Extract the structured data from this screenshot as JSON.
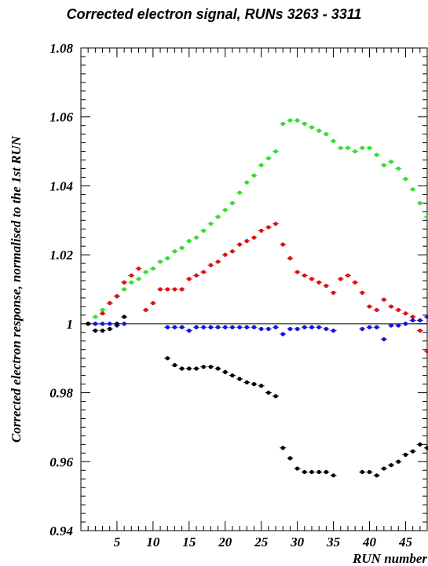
{
  "chart_data": {
    "type": "scatter",
    "title": "Corrected electron signal,  RUNs 3263 - 3311",
    "xlabel": "RUN number",
    "ylabel": "Corrected electron response, normalised to the 1st RUN",
    "xlim": [
      0,
      48
    ],
    "ylim": [
      0.94,
      1.08
    ],
    "grid": false,
    "x_ticks": [
      "5",
      "10",
      "15",
      "20",
      "25",
      "30",
      "35",
      "40",
      "45"
    ],
    "y_ticks": [
      "0.94",
      "0.96",
      "0.98",
      "1",
      "1.02",
      "1.04",
      "1.06",
      "1.08"
    ],
    "colors": {
      "green": "#33dd33",
      "red": "#dd1111",
      "blue": "#1111dd",
      "black": "#000000"
    },
    "series": [
      {
        "color_key": "green",
        "x": [
          1,
          2,
          3,
          4,
          5,
          6,
          7,
          8,
          9,
          10,
          11,
          12,
          13,
          14,
          15,
          16,
          17,
          18,
          19,
          20,
          21,
          22,
          23,
          24,
          25,
          26,
          27,
          28,
          29,
          30,
          31,
          32,
          33,
          34,
          35,
          36,
          37,
          38,
          39,
          40,
          41,
          42,
          43,
          44,
          45,
          46,
          47,
          48
        ],
        "y": [
          1.0,
          1.002,
          1.004,
          1.006,
          1.008,
          1.01,
          1.012,
          1.013,
          1.015,
          1.016,
          1.018,
          1.019,
          1.021,
          1.022,
          1.024,
          1.025,
          1.027,
          1.029,
          1.031,
          1.033,
          1.035,
          1.038,
          1.041,
          1.043,
          1.046,
          1.048,
          1.05,
          1.058,
          1.059,
          1.059,
          1.058,
          1.057,
          1.056,
          1.055,
          1.053,
          1.051,
          1.051,
          1.05,
          1.051,
          1.051,
          1.049,
          1.046,
          1.047,
          1.045,
          1.042,
          1.039,
          1.035,
          1.031
        ]
      },
      {
        "color_key": "red",
        "x": [
          1,
          2,
          3,
          4,
          5,
          6,
          7,
          8,
          9,
          10,
          11,
          12,
          13,
          14,
          15,
          16,
          17,
          18,
          19,
          20,
          21,
          22,
          23,
          24,
          25,
          26,
          27,
          28,
          29,
          30,
          31,
          32,
          33,
          34,
          35,
          36,
          37,
          38,
          39,
          40,
          41,
          42,
          43,
          44,
          45,
          46,
          47,
          48
        ],
        "y": [
          1.0,
          1.0,
          1.003,
          1.006,
          1.008,
          1.012,
          1.014,
          1.016,
          1.004,
          1.006,
          1.01,
          1.01,
          1.01,
          1.01,
          1.013,
          1.014,
          1.015,
          1.017,
          1.018,
          1.02,
          1.021,
          1.023,
          1.024,
          1.025,
          1.027,
          1.028,
          1.029,
          1.023,
          1.019,
          1.015,
          1.014,
          1.013,
          1.012,
          1.011,
          1.009,
          1.013,
          1.014,
          1.012,
          1.009,
          1.005,
          1.004,
          1.007,
          1.005,
          1.004,
          1.003,
          1.002,
          0.998,
          0.992
        ]
      },
      {
        "color_key": "blue",
        "x": [
          1,
          2,
          3,
          4,
          5,
          6,
          12,
          13,
          14,
          15,
          16,
          17,
          18,
          19,
          20,
          21,
          22,
          23,
          24,
          25,
          26,
          27,
          28,
          29,
          30,
          31,
          32,
          33,
          34,
          35,
          39,
          40,
          41,
          42,
          43,
          44,
          45,
          46,
          47,
          48
        ],
        "y": [
          1.0,
          1.0,
          1.0,
          1.0,
          0.9995,
          1.0,
          0.999,
          0.999,
          0.999,
          0.998,
          0.999,
          0.999,
          0.999,
          0.999,
          0.999,
          0.999,
          0.999,
          0.999,
          0.999,
          0.9985,
          0.9985,
          0.999,
          0.997,
          0.9985,
          0.9985,
          0.999,
          0.999,
          0.999,
          0.9985,
          0.998,
          0.9985,
          0.999,
          0.999,
          0.9955,
          0.9995,
          0.9995,
          1.0,
          1.001,
          1.001,
          1.002
        ]
      },
      {
        "color_key": "black",
        "x": [
          1,
          2,
          3,
          4,
          5,
          6,
          12,
          13,
          14,
          15,
          16,
          17,
          18,
          19,
          20,
          21,
          22,
          23,
          24,
          25,
          26,
          27,
          28,
          29,
          30,
          31,
          32,
          33,
          34,
          35,
          39,
          40,
          41,
          42,
          43,
          44,
          45,
          46,
          47,
          48
        ],
        "y": [
          1.0,
          0.998,
          0.998,
          0.9985,
          1.0,
          1.002,
          0.99,
          0.988,
          0.987,
          0.987,
          0.987,
          0.9875,
          0.9875,
          0.987,
          0.986,
          0.985,
          0.984,
          0.983,
          0.9825,
          0.982,
          0.98,
          0.979,
          0.964,
          0.961,
          0.958,
          0.957,
          0.957,
          0.957,
          0.957,
          0.956,
          0.957,
          0.957,
          0.956,
          0.958,
          0.959,
          0.96,
          0.962,
          0.963,
          0.965,
          0.964
        ]
      }
    ]
  }
}
